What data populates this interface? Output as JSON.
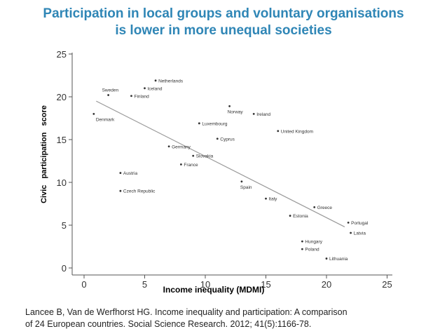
{
  "title_lines": [
    "Participation in local groups and voluntary organisations",
    "is lower in more unequal societies"
  ],
  "citation_lines": [
    "Lancee B, Van de Werfhorst HG. Income inequality and participation: A comparison",
    "of 24 European countries. Social Science Research. 2012; 41(5):1166-78."
  ],
  "colors": {
    "title": "#2f86b6",
    "points": "#333333",
    "fit_line": "#999999",
    "axis": "#555555"
  },
  "chart_data": {
    "type": "scatter",
    "xlabel": "Income inequality (MDMI)",
    "ylabel": "Civic   participation score",
    "xlim": [
      0,
      25
    ],
    "ylim": [
      0,
      25
    ],
    "x_ticks": [
      0,
      5,
      10,
      15,
      20,
      25
    ],
    "y_ticks": [
      0,
      5,
      10,
      15,
      20,
      25
    ],
    "grid": false,
    "points": [
      {
        "label": "Netherlands",
        "x": 5.9,
        "y": 21.9
      },
      {
        "label": "Iceland",
        "x": 5.0,
        "y": 21.0
      },
      {
        "label": "Sweden",
        "x": 2.0,
        "y": 20.2
      },
      {
        "label": "Finland",
        "x": 3.9,
        "y": 20.1
      },
      {
        "label": "Denmark",
        "x": 0.8,
        "y": 18.0
      },
      {
        "label": "Norway",
        "x": 12.0,
        "y": 18.9
      },
      {
        "label": "Ireland",
        "x": 14.0,
        "y": 18.0
      },
      {
        "label": "Luxembourg",
        "x": 9.5,
        "y": 16.9
      },
      {
        "label": "United Kingdom",
        "x": 16.0,
        "y": 16.0
      },
      {
        "label": "Cyprus",
        "x": 11.0,
        "y": 15.1
      },
      {
        "label": "Germany",
        "x": 7.0,
        "y": 14.2
      },
      {
        "label": "Slovakia",
        "x": 9.0,
        "y": 13.1
      },
      {
        "label": "France",
        "x": 8.0,
        "y": 12.1
      },
      {
        "label": "Austria",
        "x": 3.0,
        "y": 11.1
      },
      {
        "label": "Spain",
        "x": 13.0,
        "y": 10.1
      },
      {
        "label": "Czech Republic",
        "x": 3.0,
        "y": 9.0
      },
      {
        "label": "Italy",
        "x": 15.0,
        "y": 8.1
      },
      {
        "label": "Greece",
        "x": 19.0,
        "y": 7.1
      },
      {
        "label": "Estonia",
        "x": 17.0,
        "y": 6.1
      },
      {
        "label": "Portugal",
        "x": 21.8,
        "y": 5.3
      },
      {
        "label": "Latvia",
        "x": 22.0,
        "y": 4.1
      },
      {
        "label": "Hungary",
        "x": 18.0,
        "y": 3.1
      },
      {
        "label": "Poland",
        "x": 18.0,
        "y": 2.2
      },
      {
        "label": "Lithuania",
        "x": 20.0,
        "y": 1.1
      }
    ],
    "fit_line": {
      "x": [
        1,
        21.5
      ],
      "y": [
        19.5,
        4.8
      ]
    }
  }
}
